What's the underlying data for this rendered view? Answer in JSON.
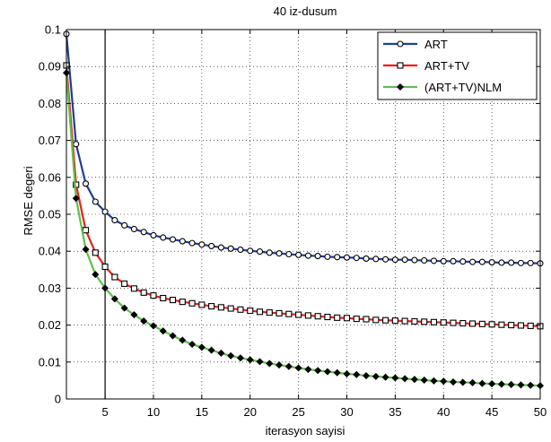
{
  "chart_data": {
    "type": "line",
    "title": "40 iz-dusum",
    "xlabel": "iterasyon sayisi",
    "ylabel": "RMSE degeri",
    "xlim": [
      1,
      50
    ],
    "ylim": [
      0,
      0.1
    ],
    "xticks": [
      5,
      10,
      15,
      20,
      25,
      30,
      35,
      40,
      45,
      50
    ],
    "yticks": [
      0,
      0.01,
      0.02,
      0.03,
      0.04,
      0.05,
      0.06,
      0.07,
      0.08,
      0.09,
      0.1
    ],
    "xtick_labels": [
      "5",
      "10",
      "15",
      "20",
      "25",
      "30",
      "35",
      "40",
      "45",
      "50"
    ],
    "ytick_labels": [
      "0",
      "0.01",
      "0.02",
      "0.03",
      "0.04",
      "0.05",
      "0.06",
      "0.07",
      "0.08",
      "0.09",
      "0.1"
    ],
    "grid": true,
    "legend_position": "top-right",
    "vline_x": 5,
    "x": [
      1,
      2,
      3,
      4,
      5,
      6,
      7,
      8,
      9,
      10,
      11,
      12,
      13,
      14,
      15,
      16,
      17,
      18,
      19,
      20,
      21,
      22,
      23,
      24,
      25,
      26,
      27,
      28,
      29,
      30,
      31,
      32,
      33,
      34,
      35,
      36,
      37,
      38,
      39,
      40,
      41,
      42,
      43,
      44,
      45,
      46,
      47,
      48,
      49,
      50
    ],
    "series": [
      {
        "name": "ART",
        "color": "#1f3d99",
        "marker": "circle",
        "values": [
          0.0988,
          0.069,
          0.0583,
          0.0534,
          0.0507,
          0.0484,
          0.047,
          0.046,
          0.0452,
          0.0443,
          0.0437,
          0.0432,
          0.0427,
          0.0422,
          0.0418,
          0.0414,
          0.041,
          0.0407,
          0.0404,
          0.0401,
          0.0399,
          0.0396,
          0.0394,
          0.0392,
          0.039,
          0.0388,
          0.0387,
          0.0385,
          0.0384,
          0.0383,
          0.0382,
          0.038,
          0.0379,
          0.0378,
          0.0377,
          0.0377,
          0.0376,
          0.0375,
          0.0374,
          0.0373,
          0.0373,
          0.0372,
          0.0371,
          0.0371,
          0.037,
          0.0369,
          0.0369,
          0.0368,
          0.0368,
          0.0367
        ]
      },
      {
        "name": "ART+TV",
        "color": "#e8201c",
        "marker": "square",
        "values": [
          0.0903,
          0.058,
          0.0457,
          0.0396,
          0.0358,
          0.033,
          0.0312,
          0.0299,
          0.0288,
          0.028,
          0.0273,
          0.0268,
          0.0263,
          0.0259,
          0.0255,
          0.0251,
          0.0248,
          0.0245,
          0.0242,
          0.0239,
          0.0236,
          0.0234,
          0.0232,
          0.023,
          0.0228,
          0.0226,
          0.0224,
          0.0222,
          0.022,
          0.0219,
          0.0217,
          0.0216,
          0.0214,
          0.0213,
          0.0212,
          0.0211,
          0.021,
          0.0209,
          0.0208,
          0.0207,
          0.0206,
          0.0205,
          0.0204,
          0.0203,
          0.0202,
          0.0201,
          0.02,
          0.0199,
          0.0198,
          0.0197
        ]
      },
      {
        "name": "(ART+TV)NLM",
        "color": "#5ec04a",
        "marker": "diamond",
        "values": [
          0.0883,
          0.0543,
          0.0405,
          0.0337,
          0.03,
          0.0271,
          0.0246,
          0.0228,
          0.0211,
          0.0198,
          0.0184,
          0.0171,
          0.0159,
          0.0148,
          0.014,
          0.0132,
          0.0124,
          0.0117,
          0.0111,
          0.0106,
          0.0101,
          0.0096,
          0.0092,
          0.0088,
          0.0084,
          0.008,
          0.0077,
          0.0074,
          0.0071,
          0.0068,
          0.0066,
          0.0063,
          0.0061,
          0.0059,
          0.0057,
          0.0055,
          0.0053,
          0.0051,
          0.0049,
          0.0048,
          0.0046,
          0.0045,
          0.0044,
          0.0042,
          0.0041,
          0.004,
          0.0039,
          0.0038,
          0.0037,
          0.0036
        ]
      }
    ]
  }
}
